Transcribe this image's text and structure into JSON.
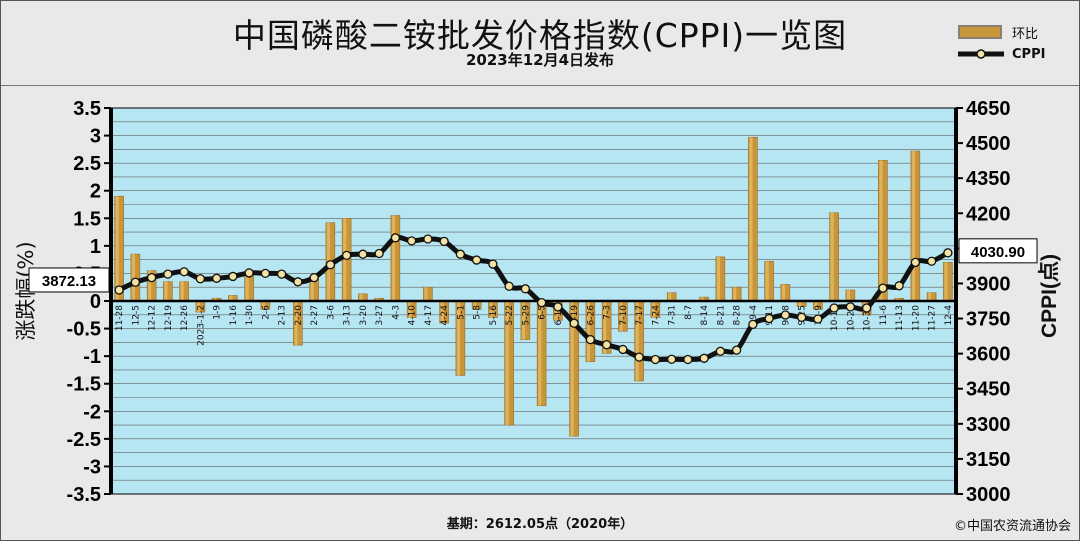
{
  "header": {
    "title": "中国磷酸二铵批发价格指数(CPPI)一览图",
    "subtitle": "2023年12月4日发布"
  },
  "legend": {
    "bar_label": "环比",
    "line_label": "CPPI"
  },
  "footer": {
    "base_text": "基期：2612.05点（2020年）",
    "copyright": "©中国农资流通协会"
  },
  "callouts": {
    "start_value": "3872.13",
    "end_value": "4030.90"
  },
  "colors": {
    "bar_fill": "#c9953a",
    "bar_highlight": "#e6c06a",
    "plot_bg": "#b7e6f3",
    "grid": "#5f5f5f",
    "line": "#111111",
    "marker_fill": "#f3e2a4"
  },
  "chart_data": {
    "type": "bar",
    "categories": [
      "11-28",
      "12-5",
      "12-12",
      "12-19",
      "12-26",
      "2023-1-2",
      "1-9",
      "1-16",
      "1-30",
      "2-6",
      "2-13",
      "2-20",
      "2-27",
      "3-6",
      "3-13",
      "3-20",
      "3-27",
      "4-3",
      "4-10",
      "4-17",
      "4-24",
      "5-1",
      "5-8",
      "5-16",
      "5-22",
      "5-29",
      "6-5",
      "6-12",
      "6-19",
      "6-26",
      "7-3",
      "7-10",
      "7-17",
      "7-24",
      "7-31",
      "8-7",
      "8-14",
      "8-21",
      "8-28",
      "9-4",
      "9-11",
      "9-18",
      "9-25",
      "10-9",
      "10-16",
      "10-23",
      "10-30",
      "11-6",
      "11-13",
      "11-20",
      "11-27",
      "12-4"
    ],
    "series": [
      {
        "name": "环比",
        "axis": "left",
        "values": [
          1.9,
          0.85,
          0.55,
          0.35,
          0.35,
          -0.2,
          0.05,
          0.1,
          0.5,
          -0.15,
          0.0,
          -0.8,
          0.45,
          1.42,
          1.5,
          0.13,
          0.05,
          1.55,
          -0.3,
          0.25,
          -0.4,
          -1.35,
          -0.15,
          -0.3,
          -2.25,
          -0.7,
          -1.9,
          -0.35,
          -2.45,
          -1.1,
          -0.95,
          -0.55,
          -1.45,
          -0.3,
          0.15,
          0.0,
          0.07,
          0.8,
          0.25,
          2.97,
          0.72,
          0.3,
          -0.1,
          -0.15,
          1.6,
          0.2,
          -0.25,
          2.55,
          0.05,
          2.72,
          0.15,
          0.7
        ]
      },
      {
        "name": "CPPI",
        "axis": "right",
        "values": [
          3872.13,
          3905,
          3925,
          3940,
          3950,
          3920,
          3922,
          3930,
          3945,
          3943,
          3940,
          3907,
          3925,
          3980,
          4020,
          4025,
          4028,
          4095,
          4082,
          4090,
          4080,
          4025,
          4000,
          3983,
          3888,
          3877,
          3818,
          3800,
          3730,
          3660,
          3638,
          3618,
          3585,
          3575,
          3576,
          3575,
          3580,
          3610,
          3615,
          3725,
          3750,
          3765,
          3755,
          3748,
          3795,
          3800,
          3795,
          3880,
          3890,
          3990,
          3995,
          4030.9
        ]
      }
    ],
    "yleft": {
      "label": "涨跌幅(%)",
      "lim": [
        -3.5,
        3.5
      ],
      "ticks": [
        3.5,
        3,
        2.5,
        2,
        1.5,
        1,
        0.5,
        0,
        -0.5,
        -1,
        -1.5,
        -2,
        -2.5,
        -3,
        -3.5
      ]
    },
    "yright": {
      "label": "CPPI(点)",
      "lim": [
        3000,
        4650
      ],
      "ticks": [
        4650,
        4500,
        4350,
        4200,
        4050,
        3900,
        3750,
        3600,
        3450,
        3300,
        3150,
        3000
      ]
    },
    "grid": true,
    "legend_position": "top-right"
  }
}
